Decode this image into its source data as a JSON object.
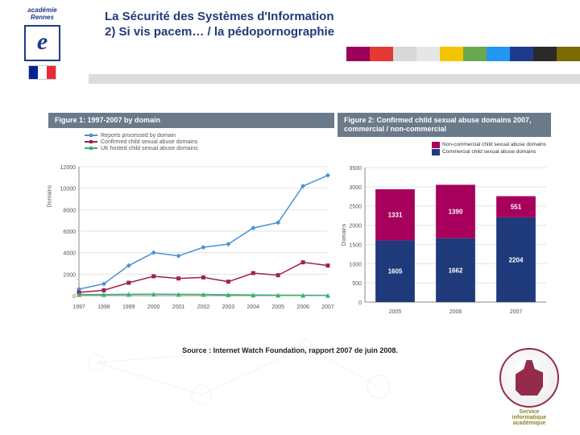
{
  "header": {
    "academy_label": "académie\nRennes",
    "logo_letter": "e",
    "flag_colors": [
      "#002395",
      "#ffffff",
      "#ed2939"
    ],
    "title_line1": "La Sécurité des Systèmes d'Information",
    "title_line2": "2) Si vis pacem… / la pédopornographie",
    "title_color": "#223a7a",
    "colorbar_colors": [
      "#9b005c",
      "#e53935",
      "#d8d8d8",
      "#e6e6e6",
      "#f5c400",
      "#6aa84f",
      "#2196f3",
      "#1e3a8a",
      "#2a2a2a",
      "#7c6a00"
    ]
  },
  "figure1": {
    "caption": "Figure 1: 1997-2007 by domain",
    "caption_bg": "#6b7a8a",
    "type": "line",
    "x_years": [
      1997,
      1998,
      1999,
      2000,
      2001,
      2002,
      2003,
      2004,
      2005,
      2006,
      2007
    ],
    "ylim": [
      0,
      12000
    ],
    "ytick_step": 2000,
    "ylabel": "Domains",
    "grid_color": "#e3e3e3",
    "background_color": "#ffffff",
    "series": [
      {
        "name": "Reports processed by domain",
        "color": "#4a90d9",
        "marker": "diamond",
        "values": [
          600,
          1100,
          2800,
          4000,
          3700,
          4500,
          4800,
          6300,
          6800,
          10200,
          11200
        ]
      },
      {
        "name": "Confirmed child sexual abuse domains",
        "color": "#a02050",
        "marker": "square",
        "values": [
          300,
          500,
          1200,
          1800,
          1600,
          1700,
          1300,
          2100,
          1900,
          3100,
          2800
        ]
      },
      {
        "name": "UK hosted child sexual abuse domains",
        "color": "#3bb273",
        "marker": "triangle",
        "values": [
          100,
          100,
          120,
          140,
          120,
          110,
          80,
          70,
          50,
          40,
          30
        ]
      }
    ],
    "axis_color": "#888888",
    "tick_fontsize": 7
  },
  "figure2": {
    "caption": "Figure 2: Confirmed child sexual abuse domains 2007, commercial / non-commercial",
    "caption_bg": "#6b7a8a",
    "type": "stacked-bar",
    "categories": [
      "2005",
      "2006",
      "2007"
    ],
    "ylim": [
      0,
      3500
    ],
    "ytick_step": 500,
    "ylabel": "Domains",
    "grid_color": "#e3e3e3",
    "background_color": "#ffffff",
    "legend": [
      {
        "name": "Non-commercial child sexual abuse domains",
        "color": "#a6005c"
      },
      {
        "name": "Commercial child sexual abuse domains",
        "color": "#1f3a7a"
      }
    ],
    "bars": [
      {
        "noncommercial": 1331,
        "commercial": 1605
      },
      {
        "noncommercial": 1390,
        "commercial": 1662
      },
      {
        "noncommercial": 551,
        "commercial": 2204
      }
    ],
    "value_label_color": "#ffffff",
    "value_label_fontsize": 8,
    "bar_width": 0.65,
    "axis_color": "#888888",
    "tick_fontsize": 7
  },
  "source_line": "Source : Internet Watch Foundation, rapport 2007 de juin 2008.",
  "logo_br": {
    "text1": "Service",
    "text2": "informatique",
    "text3": "académique",
    "color": "#8a1538"
  }
}
